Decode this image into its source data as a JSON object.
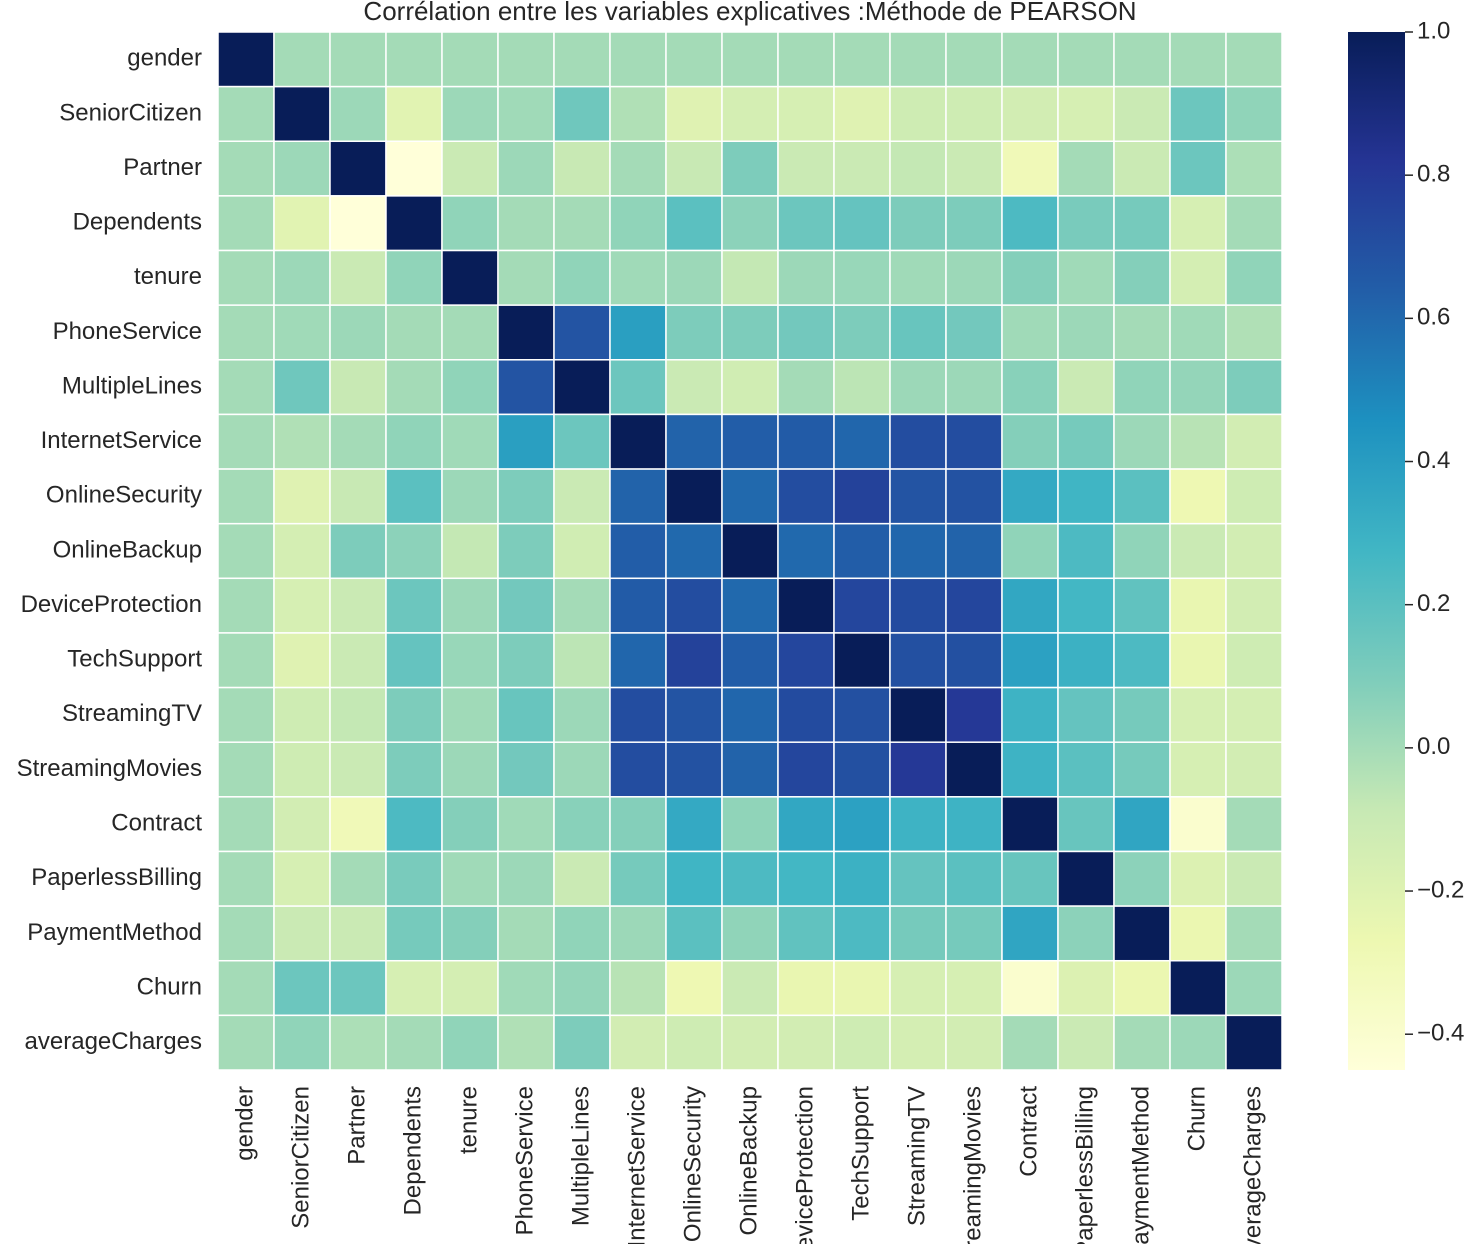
{
  "chart_data": {
    "type": "heatmap",
    "title": "Corrélation entre les variables explicatives :Méthode de PEARSON",
    "categories": [
      "gender",
      "SeniorCitizen",
      "Partner",
      "Dependents",
      "tenure",
      "PhoneService",
      "MultipleLines",
      "InternetService",
      "OnlineSecurity",
      "OnlineBackup",
      "DeviceProtection",
      "TechSupport",
      "StreamingTV",
      "StreamingMovies",
      "Contract",
      "PaperlessBilling",
      "PaymentMethod",
      "Churn",
      "averageCharges"
    ],
    "values": [
      [
        1,
        0,
        0,
        0,
        0,
        0,
        0,
        0,
        0,
        0,
        0,
        0,
        0,
        0,
        0,
        0,
        0,
        0,
        0
      ],
      [
        0,
        1,
        0.02,
        -0.21,
        0.02,
        0.01,
        0.14,
        -0.03,
        -0.2,
        -0.15,
        -0.16,
        -0.2,
        -0.12,
        -0.12,
        -0.14,
        -0.16,
        -0.1,
        0.15,
        0.05
      ],
      [
        0,
        0.02,
        1,
        -0.45,
        -0.1,
        0.02,
        -0.09,
        0,
        -0.09,
        0.1,
        -0.1,
        -0.1,
        -0.08,
        -0.1,
        -0.3,
        0,
        -0.1,
        0.15,
        -0.02
      ],
      [
        0,
        -0.21,
        -0.45,
        1,
        0.05,
        0,
        0,
        0.05,
        0.2,
        0.06,
        0.15,
        0.17,
        0.1,
        0.1,
        0.24,
        0.11,
        0.12,
        -0.16,
        0
      ],
      [
        0,
        0.02,
        -0.1,
        0.05,
        1,
        0,
        0.05,
        0.01,
        0.02,
        -0.08,
        0.02,
        0.03,
        0.01,
        0.02,
        0.08,
        0.01,
        0.08,
        -0.15,
        0.05
      ],
      [
        0,
        0.01,
        0.02,
        0,
        0,
        1,
        0.68,
        0.39,
        0.1,
        0.1,
        0.13,
        0.1,
        0.16,
        0.13,
        0.01,
        0.02,
        0,
        0.01,
        -0.03
      ],
      [
        0,
        0.14,
        -0.09,
        0,
        0.05,
        0.68,
        1,
        0.15,
        -0.1,
        -0.13,
        0,
        -0.06,
        0.02,
        0.02,
        0.07,
        -0.1,
        0.05,
        0.04,
        0.1
      ],
      [
        0,
        -0.03,
        0,
        0.05,
        0.01,
        0.39,
        0.15,
        1,
        0.62,
        0.64,
        0.65,
        0.61,
        0.71,
        0.71,
        0.08,
        0.12,
        0.02,
        -0.05,
        -0.14
      ],
      [
        0,
        -0.2,
        -0.09,
        0.2,
        0.02,
        0.1,
        -0.1,
        0.62,
        1,
        0.6,
        0.71,
        0.76,
        0.68,
        0.69,
        0.34,
        0.28,
        0.2,
        -0.28,
        -0.12
      ],
      [
        0,
        -0.15,
        0.1,
        0.06,
        -0.08,
        0.1,
        -0.13,
        0.64,
        0.6,
        1,
        0.6,
        0.64,
        0.61,
        0.62,
        0.05,
        0.24,
        0.05,
        -0.1,
        -0.14
      ],
      [
        0,
        -0.16,
        -0.1,
        0.15,
        0.02,
        0.13,
        0,
        0.65,
        0.71,
        0.6,
        1,
        0.74,
        0.72,
        0.74,
        0.35,
        0.27,
        0.18,
        -0.25,
        -0.14
      ],
      [
        0,
        -0.2,
        -0.1,
        0.17,
        0.03,
        0.1,
        -0.06,
        0.61,
        0.76,
        0.64,
        0.74,
        1,
        0.7,
        0.7,
        0.38,
        0.3,
        0.24,
        -0.25,
        -0.12
      ],
      [
        0,
        -0.12,
        -0.08,
        0.1,
        0.01,
        0.16,
        0.02,
        0.71,
        0.68,
        0.61,
        0.72,
        0.7,
        1,
        0.8,
        0.29,
        0.17,
        0.12,
        -0.16,
        -0.15
      ],
      [
        0,
        -0.12,
        -0.1,
        0.1,
        0.02,
        0.13,
        0.02,
        0.71,
        0.69,
        0.62,
        0.74,
        0.7,
        0.8,
        1,
        0.29,
        0.2,
        0.12,
        -0.16,
        -0.14
      ],
      [
        0,
        -0.14,
        -0.3,
        0.24,
        0.08,
        0.01,
        0.07,
        0.08,
        0.34,
        0.05,
        0.35,
        0.38,
        0.29,
        0.29,
        1,
        0.16,
        0.36,
        -0.4,
        0
      ],
      [
        0,
        -0.16,
        0,
        0.11,
        0.01,
        0.02,
        -0.1,
        0.12,
        0.28,
        0.24,
        0.27,
        0.3,
        0.17,
        0.2,
        0.16,
        1,
        0.06,
        -0.19,
        -0.1
      ],
      [
        0,
        -0.1,
        -0.1,
        0.12,
        0.08,
        0,
        0.05,
        0.02,
        0.2,
        0.05,
        0.18,
        0.24,
        0.12,
        0.12,
        0.36,
        0.06,
        1,
        -0.26,
        0
      ],
      [
        0,
        0.15,
        0.15,
        -0.16,
        -0.15,
        0.01,
        0.04,
        -0.05,
        -0.28,
        -0.1,
        -0.25,
        -0.25,
        -0.16,
        -0.16,
        -0.4,
        -0.19,
        -0.26,
        1,
        0.02
      ],
      [
        0,
        0.05,
        -0.02,
        0,
        0.05,
        -0.03,
        0.1,
        -0.14,
        -0.12,
        -0.14,
        -0.14,
        -0.12,
        -0.15,
        -0.14,
        0,
        -0.1,
        0,
        0.02,
        1
      ]
    ],
    "colormap": "YlGnBu",
    "clim": [
      -0.45,
      1
    ],
    "cticks": [
      {
        "value": -0.4,
        "label": "−0.4"
      },
      {
        "value": -0.2,
        "label": "−0.2"
      },
      {
        "value": 0,
        "label": "0.0"
      },
      0.2,
      0.4,
      0.6,
      0.8,
      {
        "value": 1,
        "label": "1.0"
      }
    ]
  }
}
